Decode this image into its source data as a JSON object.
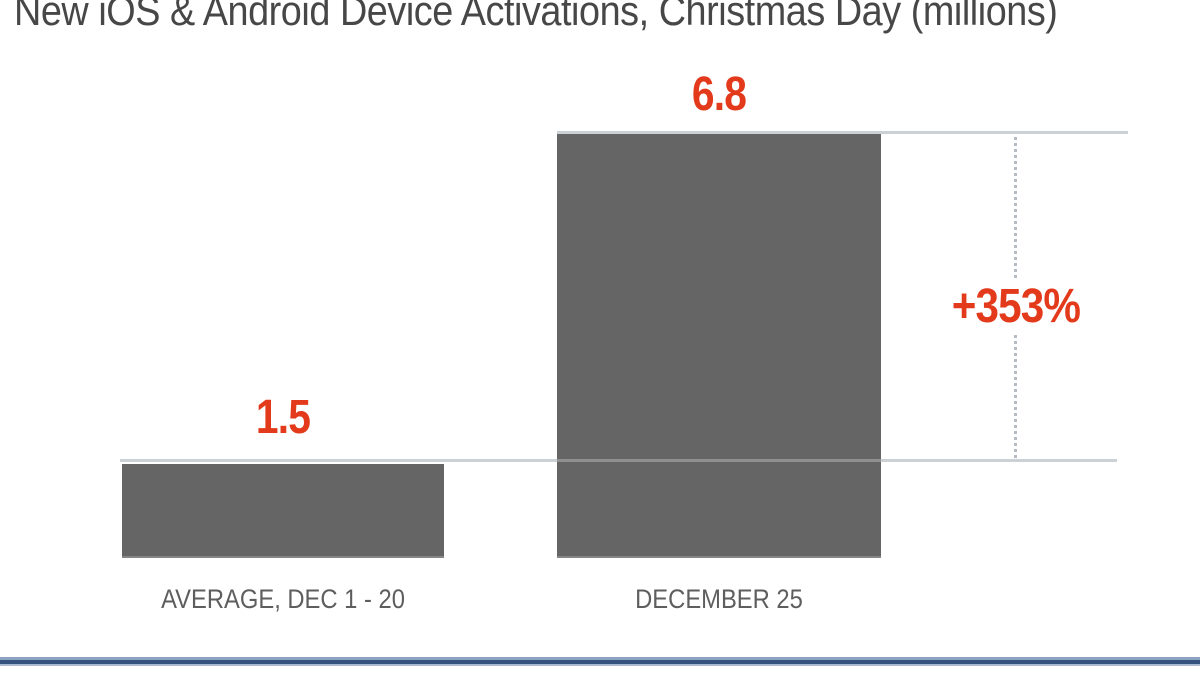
{
  "title": "New iOS & Android Device Activations, Christmas Day (millions)",
  "chart_data": {
    "type": "bar",
    "title": "New iOS & Android Device Activations, Christmas Day (millions)",
    "categories": [
      "AVERAGE, DEC 1 - 20",
      "DECEMBER 25"
    ],
    "values": [
      1.5,
      6.8
    ],
    "value_labels": [
      "1.5",
      "6.8"
    ],
    "unit": "millions",
    "annotation": {
      "label": "+353%",
      "meaning": "increase from average Dec 1-20 to December 25"
    },
    "ylim": [
      0,
      6.8
    ],
    "xlabel": "",
    "ylabel": "",
    "grid": false,
    "legend": false,
    "colors": {
      "bar": "#656565",
      "value_label": "#e23a1b",
      "annotation": "#e23a1b",
      "reference_line": "#ccd1d6",
      "dotted_line": "#b6bcc3",
      "category_label": "#5e5e5e",
      "title": "#474747",
      "footer_band_dark": "#34527c",
      "footer_band_light": "#8ca2c1"
    }
  }
}
